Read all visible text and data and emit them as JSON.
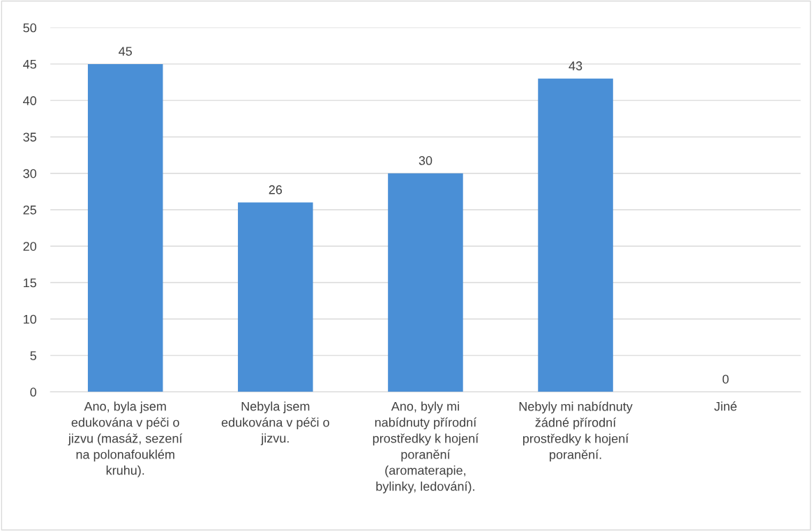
{
  "chart_data": {
    "type": "bar",
    "categories": [
      "Ano, byla jsem\nedukována v péči o\njizvu (masáž, sezení\nna polonafouklém\nkruhu).",
      "Nebyla jsem\nedukována v péči o\njizvu.",
      "Ano, byly mi\nnabídnuty přírodní\nprostředky k hojení\nporanění\n(aromaterapie,\nbylinky, ledování).",
      "Nebyly mi nabídnuty\nžádné přírodní\nprostředky k hojení\nporanění.",
      "Jiné"
    ],
    "values": [
      45,
      26,
      30,
      43,
      0
    ],
    "color": "#4a8fd6",
    "ylim": [
      0,
      50
    ],
    "yticks": [
      0,
      5,
      10,
      15,
      20,
      25,
      30,
      35,
      40,
      45,
      50
    ],
    "grid": "y",
    "data_labels": true
  }
}
